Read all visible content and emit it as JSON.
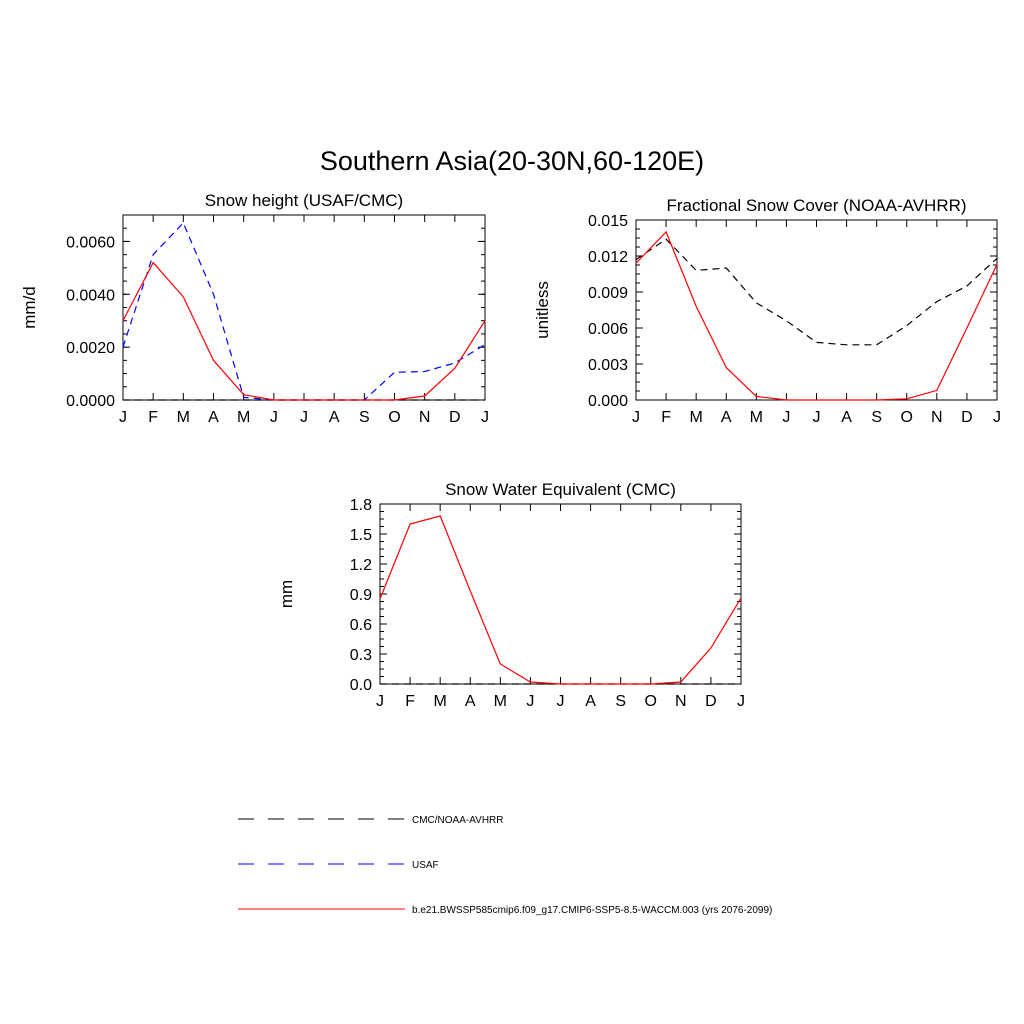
{
  "page_title": "Southern Asia(20-30N,60-120E)",
  "colors": {
    "obs": "#000000",
    "usaf": "#0000ff",
    "model": "#ff0000"
  },
  "legend": {
    "entries": [
      {
        "label": "CMC/NOAA-AVHRR",
        "color": "#000000",
        "style": "dashed"
      },
      {
        "label": "USAF",
        "color": "#0000ff",
        "style": "dashed"
      },
      {
        "label": "b.e21.BWSSP585cmip6.f09_g17.CMIP6-SSP5-8.5-WACCM.003 (yrs 2076-2099)",
        "color": "#ff0000",
        "style": "solid"
      }
    ]
  },
  "chart_data": [
    {
      "type": "line",
      "title": "Snow height (USAF/CMC)",
      "xlabel": "",
      "ylabel": "mm/d",
      "categories": [
        "J",
        "F",
        "M",
        "A",
        "M",
        "J",
        "J",
        "A",
        "S",
        "O",
        "N",
        "D",
        "J"
      ],
      "yticks": [
        "0.0000",
        "0.0020",
        "0.0040",
        "0.0060"
      ],
      "ylim": [
        0,
        0.007
      ],
      "series": [
        {
          "name": "CMC/NOAA-AVHRR",
          "color": "#000000",
          "dash": true,
          "values": [
            0,
            0,
            0,
            0,
            0,
            0,
            0,
            0,
            0,
            0,
            0,
            0,
            0
          ]
        },
        {
          "name": "USAF",
          "color": "#0000ff",
          "dash": true,
          "values": [
            0.002,
            0.0055,
            0.0067,
            0.004,
            0.0001,
            0,
            0,
            0,
            0,
            0.00105,
            0.00108,
            0.0014,
            0.0021
          ]
        },
        {
          "name": "b.e21.BWSSP585cmip6.f09_g17.CMIP6-SSP5-8.5-WACCM.003 (yrs 2076-2099)",
          "color": "#ff0000",
          "dash": false,
          "values": [
            0.003,
            0.0052,
            0.0039,
            0.0015,
            0.0002,
            0,
            0,
            0,
            0,
            0,
            0.00015,
            0.0012,
            0.003
          ]
        }
      ]
    },
    {
      "type": "line",
      "title": "Fractional Snow Cover (NOAA-AVHRR)",
      "xlabel": "",
      "ylabel": "unitless",
      "categories": [
        "J",
        "F",
        "M",
        "A",
        "M",
        "J",
        "J",
        "A",
        "S",
        "O",
        "N",
        "D",
        "J"
      ],
      "yticks": [
        "0.000",
        "0.003",
        "0.006",
        "0.009",
        "0.012",
        "0.015"
      ],
      "ylim": [
        0,
        0.015
      ],
      "series": [
        {
          "name": "CMC/NOAA-AVHRR",
          "color": "#000000",
          "dash": true,
          "values": [
            0.0117,
            0.0134,
            0.0108,
            0.011,
            0.0081,
            0.0066,
            0.0048,
            0.0046,
            0.0046,
            0.0062,
            0.0082,
            0.0095,
            0.0118
          ]
        },
        {
          "name": "b.e21.BWSSP585cmip6.f09_g17.CMIP6-SSP5-8.5-WACCM.003 (yrs 2076-2099)",
          "color": "#ff0000",
          "dash": false,
          "values": [
            0.0114,
            0.014,
            0.0078,
            0.0027,
            0.0003,
            0,
            0,
            0,
            0,
            0.0001,
            0.0008,
            0.006,
            0.0113
          ]
        }
      ]
    },
    {
      "type": "line",
      "title": "Snow Water Equivalent (CMC)",
      "xlabel": "",
      "ylabel": "mm",
      "categories": [
        "J",
        "F",
        "M",
        "A",
        "M",
        "J",
        "J",
        "A",
        "S",
        "O",
        "N",
        "D",
        "J"
      ],
      "yticks": [
        "0.0",
        "0.3",
        "0.6",
        "0.9",
        "1.2",
        "1.5",
        "1.8"
      ],
      "ylim": [
        0,
        1.8
      ],
      "series": [
        {
          "name": "CMC/NOAA-AVHRR",
          "color": "#000000",
          "dash": true,
          "values": [
            0,
            0,
            0,
            0,
            0,
            0,
            0,
            0,
            0,
            0,
            0,
            0,
            0
          ]
        },
        {
          "name": "b.e21.BWSSP585cmip6.f09_g17.CMIP6-SSP5-8.5-WACCM.003 (yrs 2076-2099)",
          "color": "#ff0000",
          "dash": false,
          "values": [
            0.85,
            1.6,
            1.68,
            0.93,
            0.2,
            0.02,
            0,
            0,
            0,
            0,
            0.02,
            0.36,
            0.86
          ]
        }
      ]
    }
  ]
}
